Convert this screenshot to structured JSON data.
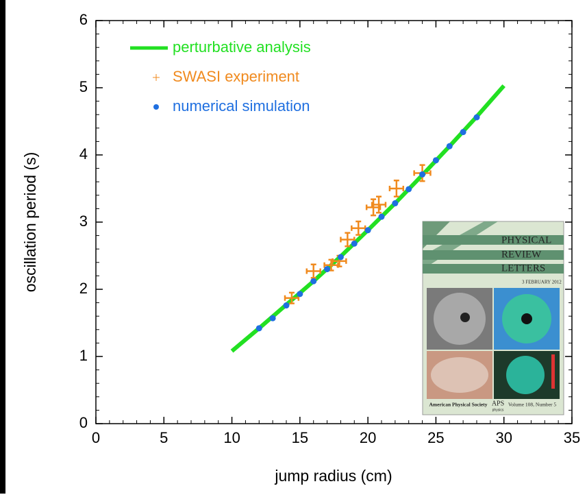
{
  "chart_data": {
    "type": "line",
    "xlabel": "jump radius (cm)",
    "ylabel": "oscillation period (s)",
    "xlim": [
      0,
      35
    ],
    "xticks": [
      0,
      5,
      10,
      15,
      20,
      25,
      30,
      35
    ],
    "ylim": [
      0,
      6
    ],
    "yticks": [
      0,
      1,
      2,
      3,
      4,
      5,
      6
    ],
    "legend": "upper left",
    "series": [
      {
        "name": "perturbative analysis",
        "type": "line",
        "color": "#22e022",
        "x": [
          10,
          12,
          14,
          16,
          18,
          20,
          22,
          24,
          26,
          28,
          30
        ],
        "values": [
          1.08,
          1.42,
          1.77,
          2.12,
          2.49,
          2.88,
          3.28,
          3.7,
          4.13,
          4.57,
          5.03
        ]
      },
      {
        "name": "SWASI experiment",
        "type": "errorbar",
        "color": "#f08a1e",
        "x": [
          14.4,
          16.0,
          17.3,
          17.9,
          18.5,
          19.3,
          20.4,
          20.8,
          22.1,
          24.0
        ],
        "values": [
          1.87,
          2.27,
          2.36,
          2.42,
          2.74,
          2.91,
          3.22,
          3.26,
          3.5,
          3.73
        ],
        "x_errors": [
          0.5,
          0.5,
          0.5,
          0.5,
          0.5,
          0.5,
          0.5,
          0.5,
          0.5,
          0.6
        ],
        "errors": [
          0.08,
          0.1,
          0.08,
          0.08,
          0.1,
          0.1,
          0.12,
          0.12,
          0.12,
          0.12
        ]
      },
      {
        "name": "numerical simulation",
        "type": "scatter",
        "color": "#1f6fe0",
        "x": [
          12,
          13,
          14,
          15,
          16,
          17,
          18,
          19,
          20,
          21,
          22,
          23,
          24,
          25,
          26,
          27,
          28
        ],
        "values": [
          1.42,
          1.57,
          1.76,
          1.93,
          2.12,
          2.3,
          2.48,
          2.68,
          2.88,
          3.08,
          3.28,
          3.49,
          3.71,
          3.92,
          4.13,
          4.34,
          4.56
        ]
      }
    ]
  },
  "inset": {
    "title_lines": [
      "PHYSICAL",
      "REVIEW",
      "LETTERS"
    ],
    "date": "3 FEBRUARY 2012",
    "publisher": "American Physical Society",
    "logo": "APS",
    "logo_sub": "physics",
    "volume": "Volume 108, Number 5"
  }
}
